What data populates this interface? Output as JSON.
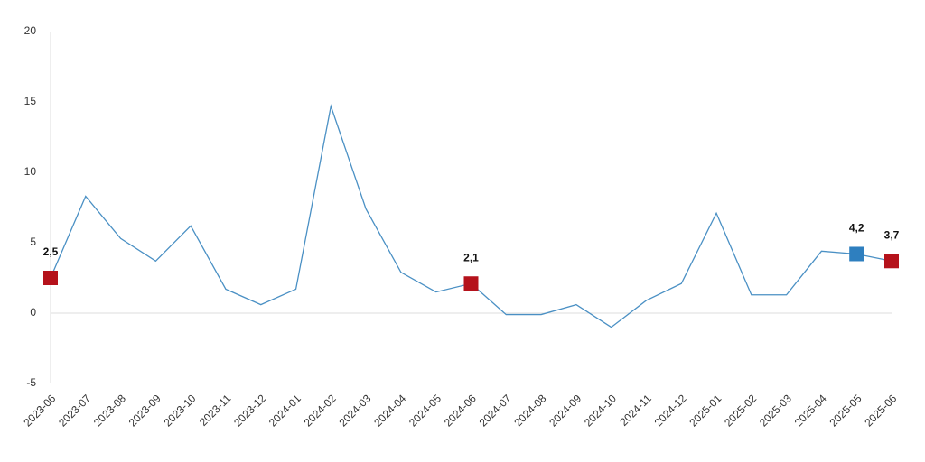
{
  "chart_data": {
    "type": "line",
    "categories": [
      "2023-06",
      "2023-07",
      "2023-08",
      "2023-09",
      "2023-10",
      "2023-11",
      "2023-12",
      "2024-01",
      "2024-02",
      "2024-03",
      "2024-04",
      "2024-05",
      "2024-06",
      "2024-07",
      "2024-08",
      "2024-09",
      "2024-10",
      "2024-11",
      "2024-12",
      "2025-01",
      "2025-02",
      "2025-03",
      "2025-04",
      "2025-05",
      "2025-06"
    ],
    "series": [
      {
        "color": "#4a90c4",
        "values": [
          2.5,
          8.3,
          5.3,
          3.7,
          6.2,
          1.7,
          0.6,
          1.7,
          14.7,
          7.4,
          2.9,
          1.5,
          2.1,
          -0.1,
          -0.1,
          0.6,
          -1.0,
          0.9,
          2.1,
          7.1,
          1.3,
          1.3,
          4.4,
          4.2,
          3.7
        ],
        "value_labels": [
          "2,5",
          null,
          null,
          null,
          null,
          null,
          null,
          null,
          null,
          null,
          null,
          null,
          "2,1",
          null,
          null,
          null,
          null,
          null,
          null,
          null,
          null,
          null,
          null,
          "4,2",
          "3,7"
        ],
        "marker_colors": [
          "#b5121b",
          null,
          null,
          null,
          null,
          null,
          null,
          null,
          null,
          null,
          null,
          null,
          "#b5121b",
          null,
          null,
          null,
          null,
          null,
          null,
          null,
          null,
          null,
          null,
          "#2e7fbf",
          "#b5121b"
        ]
      }
    ],
    "ylim": [
      -5,
      20
    ],
    "yticks": [
      -5,
      0,
      5,
      10,
      15,
      20
    ]
  }
}
